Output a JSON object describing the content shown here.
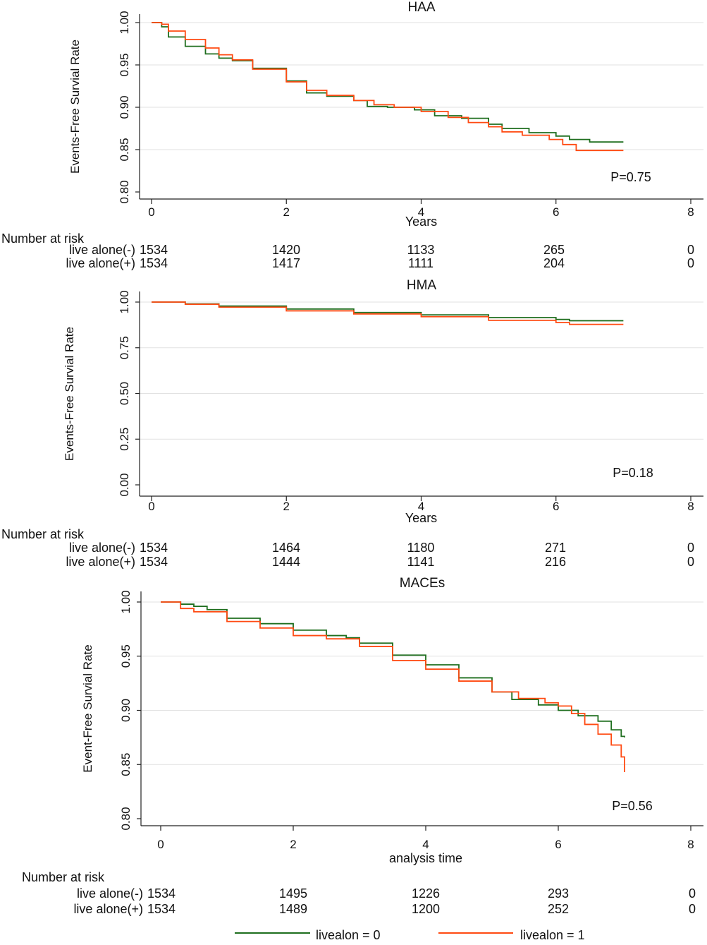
{
  "colors": {
    "group0": "#1e6e1e",
    "group1": "#ff4a12",
    "axis": "#222222",
    "grid": "#e2e2e2"
  },
  "legend": [
    {
      "label": "livealon = 0",
      "color": "#1e6e1e"
    },
    {
      "label": "livealon = 1",
      "color": "#ff4a12"
    }
  ],
  "chart_data": [
    {
      "type": "line",
      "title": "HAA",
      "xlabel": "Years",
      "ylabel": "Events-Free Survial Rate",
      "xlim": [
        0,
        8
      ],
      "ylim": [
        0.8,
        1.0
      ],
      "xticks": [
        "0",
        "2",
        "4",
        "6",
        "8"
      ],
      "yticks": [
        "0.80",
        "0.85",
        "0.90",
        "0.95",
        "1.00"
      ],
      "annotation": "P=0.75",
      "series": [
        {
          "name": "livealon = 0",
          "x": [
            0,
            0.15,
            0.25,
            0.5,
            0.8,
            1.0,
            1.2,
            1.5,
            2.0,
            2.3,
            2.6,
            3.0,
            3.2,
            3.5,
            3.9,
            4.2,
            4.6,
            5.0,
            5.2,
            5.6,
            6.0,
            6.2,
            6.5,
            7.0
          ],
          "values": [
            1.0,
            0.995,
            0.983,
            0.972,
            0.963,
            0.958,
            0.955,
            0.946,
            0.931,
            0.917,
            0.913,
            0.908,
            0.901,
            0.9,
            0.897,
            0.89,
            0.887,
            0.88,
            0.875,
            0.87,
            0.866,
            0.862,
            0.859,
            0.859
          ]
        },
        {
          "name": "livealon = 1",
          "x": [
            0,
            0.15,
            0.25,
            0.5,
            0.8,
            1.0,
            1.2,
            1.5,
            2.0,
            2.3,
            2.6,
            3.0,
            3.3,
            3.6,
            4.0,
            4.4,
            4.7,
            5.0,
            5.2,
            5.5,
            5.9,
            6.1,
            6.3,
            7.0
          ],
          "values": [
            1.0,
            0.998,
            0.99,
            0.98,
            0.97,
            0.962,
            0.956,
            0.945,
            0.93,
            0.92,
            0.914,
            0.908,
            0.903,
            0.9,
            0.895,
            0.888,
            0.882,
            0.877,
            0.871,
            0.867,
            0.862,
            0.856,
            0.849,
            0.849
          ]
        }
      ],
      "risk_table": {
        "header": "Number at risk",
        "rows": [
          {
            "label": "live alone(-)",
            "values": [
              "1534",
              "1420",
              "1133",
              "265",
              "0"
            ]
          },
          {
            "label": "live alone(+)",
            "values": [
              "1534",
              "1417",
              "1111",
              "204",
              "0"
            ]
          }
        ]
      }
    },
    {
      "type": "line",
      "title": "HMA",
      "xlabel": "Years",
      "ylabel": "Events-Free Survial Rate",
      "xlim": [
        0,
        8
      ],
      "ylim": [
        0.0,
        1.0
      ],
      "xticks": [
        "0",
        "2",
        "4",
        "6",
        "8"
      ],
      "yticks": [
        "0.00",
        "0.25",
        "0.50",
        "0.75",
        "1.00"
      ],
      "annotation": "P=0.18",
      "series": [
        {
          "name": "livealon = 0",
          "x": [
            0,
            0.5,
            1.0,
            2.0,
            3.0,
            4.0,
            5.0,
            6.0,
            6.2,
            7.0
          ],
          "values": [
            1.0,
            0.99,
            0.978,
            0.962,
            0.943,
            0.93,
            0.915,
            0.905,
            0.898,
            0.898
          ]
        },
        {
          "name": "livealon = 1",
          "x": [
            0,
            0.5,
            1.0,
            2.0,
            3.0,
            4.0,
            5.0,
            6.0,
            6.2,
            7.0
          ],
          "values": [
            1.0,
            0.988,
            0.972,
            0.952,
            0.935,
            0.92,
            0.9,
            0.888,
            0.878,
            0.878
          ]
        }
      ],
      "risk_table": {
        "header": "Number at risk",
        "rows": [
          {
            "label": "live alone(-)",
            "values": [
              "1534",
              "1464",
              "1180",
              "271",
              "0"
            ]
          },
          {
            "label": "live alone(+)",
            "values": [
              "1534",
              "1444",
              "1141",
              "216",
              "0"
            ]
          }
        ]
      }
    },
    {
      "type": "line",
      "title": "MACEs",
      "xlabel": "analysis time",
      "ylabel": "Event-Free Survial Rate",
      "xlim": [
        0,
        8
      ],
      "ylim": [
        0.8,
        1.0
      ],
      "xticks": [
        "0",
        "2",
        "4",
        "6",
        "8"
      ],
      "yticks": [
        "0.80",
        "0.85",
        "0.90",
        "0.95",
        "1.00"
      ],
      "annotation": "P=0.56",
      "series": [
        {
          "name": "livealon = 0",
          "x": [
            0,
            0.3,
            0.5,
            0.7,
            1.0,
            1.5,
            2.0,
            2.5,
            2.8,
            3.0,
            3.5,
            4.0,
            4.5,
            5.0,
            5.3,
            5.7,
            6.0,
            6.3,
            6.6,
            6.8,
            6.95,
            7.0
          ],
          "values": [
            1.0,
            0.998,
            0.996,
            0.993,
            0.985,
            0.98,
            0.974,
            0.969,
            0.967,
            0.962,
            0.951,
            0.942,
            0.93,
            0.917,
            0.91,
            0.905,
            0.9,
            0.895,
            0.89,
            0.882,
            0.876,
            0.875
          ]
        },
        {
          "name": "livealon = 1",
          "x": [
            0,
            0.3,
            0.5,
            1.0,
            1.5,
            2.0,
            2.5,
            3.0,
            3.5,
            4.0,
            4.5,
            5.0,
            5.4,
            5.8,
            6.0,
            6.2,
            6.4,
            6.6,
            6.8,
            6.95,
            7.0
          ],
          "values": [
            1.0,
            0.994,
            0.991,
            0.982,
            0.976,
            0.969,
            0.966,
            0.959,
            0.946,
            0.938,
            0.927,
            0.917,
            0.911,
            0.907,
            0.904,
            0.897,
            0.887,
            0.878,
            0.868,
            0.857,
            0.843
          ]
        }
      ],
      "risk_table": {
        "header": "Number at risk",
        "rows": [
          {
            "label": "live alone(-)",
            "values": [
              "1534",
              "1495",
              "1226",
              "293",
              "0"
            ]
          },
          {
            "label": "live alone(+)",
            "values": [
              "1534",
              "1489",
              "1200",
              "252",
              "0"
            ]
          }
        ]
      }
    }
  ]
}
